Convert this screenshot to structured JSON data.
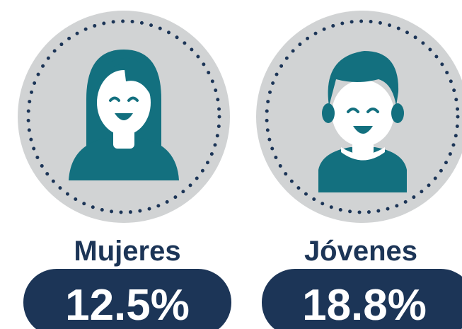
{
  "items": [
    {
      "label": "Mujeres",
      "value": "12.5%"
    },
    {
      "label": "Jóvenes",
      "value": "18.8%"
    }
  ]
}
